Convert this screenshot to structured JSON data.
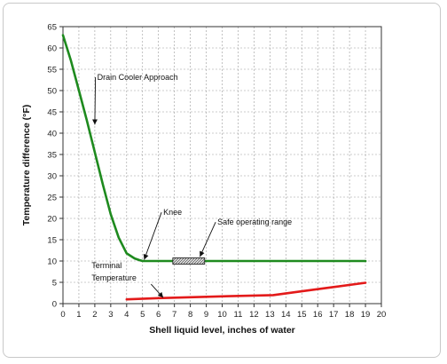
{
  "chart_data": {
    "type": "line",
    "xlabel": "Shell liquid level, inches of water",
    "ylabel": "Temperature difference (°F)",
    "xlim": [
      0,
      20
    ],
    "ylim": [
      0,
      65
    ],
    "x_ticks": [
      0,
      1,
      2,
      3,
      4,
      5,
      6,
      7,
      8,
      9,
      10,
      11,
      12,
      13,
      14,
      15,
      16,
      17,
      18,
      19,
      20
    ],
    "y_ticks": [
      0,
      5,
      10,
      15,
      20,
      25,
      30,
      35,
      40,
      45,
      50,
      55,
      60,
      65
    ],
    "grid": true,
    "series": [
      {
        "color": "#1e8a1e",
        "x": [
          0,
          0.5,
          1,
          1.5,
          2,
          2.5,
          3,
          3.5,
          4,
          4.5,
          4.8,
          5.0,
          5.3,
          6,
          8,
          10,
          12,
          14,
          16,
          18,
          19
        ],
        "y": [
          63,
          57,
          50,
          43,
          35.5,
          28,
          21,
          15.5,
          11.8,
          10.6,
          10.2,
          10,
          10,
          10,
          10,
          10,
          10,
          10,
          10,
          10,
          10
        ]
      },
      {
        "color": "#e31a1a",
        "x": [
          4,
          6,
          8,
          10,
          13.2,
          15,
          17,
          19
        ],
        "y": [
          1,
          1.3,
          1.5,
          1.7,
          2,
          2.9,
          3.9,
          4.9
        ]
      }
    ],
    "annotations": [
      {
        "id": "drain",
        "text": "Drain Cooler Approach",
        "x": 2.15,
        "y": 52.5,
        "arrow_to": [
          2.0,
          42
        ]
      },
      {
        "id": "knee",
        "text": "Knee",
        "x": 6.3,
        "y": 20.8,
        "arrow_to": [
          5.1,
          10.3
        ]
      },
      {
        "id": "safe",
        "text": "Safe operating range",
        "x": 9.7,
        "y": 18.5,
        "arrow_to": [
          8.6,
          11
        ]
      },
      {
        "id": "terminal1",
        "text": "Terminal",
        "x": 1.8,
        "y": 8.3,
        "arrow_to": null
      },
      {
        "id": "terminal2",
        "text": "Temperature",
        "x": 1.8,
        "y": 5.4,
        "arrow_to": [
          6.3,
          1.4
        ]
      }
    ],
    "safe_range": {
      "x": [
        6.9,
        8.9
      ],
      "y": 10
    }
  }
}
